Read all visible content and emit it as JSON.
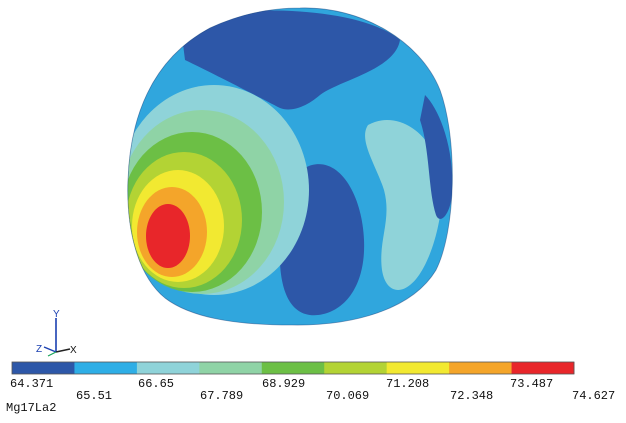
{
  "figure": {
    "material_label": "Mg17La2",
    "triad": {
      "x_label": "X",
      "y_label": "Y",
      "z_label": "Z"
    }
  },
  "legend": {
    "values": [
      "64.371",
      "65.51",
      "66.65",
      "67.789",
      "68.929",
      "70.069",
      "71.208",
      "72.348",
      "73.487",
      "74.627"
    ],
    "colors": [
      "#2d57a8",
      "#2eaee6",
      "#8fd3d9",
      "#8fd3a6",
      "#6cbf45",
      "#b3d334",
      "#f2e931",
      "#f4a52a",
      "#e8262a"
    ]
  }
}
